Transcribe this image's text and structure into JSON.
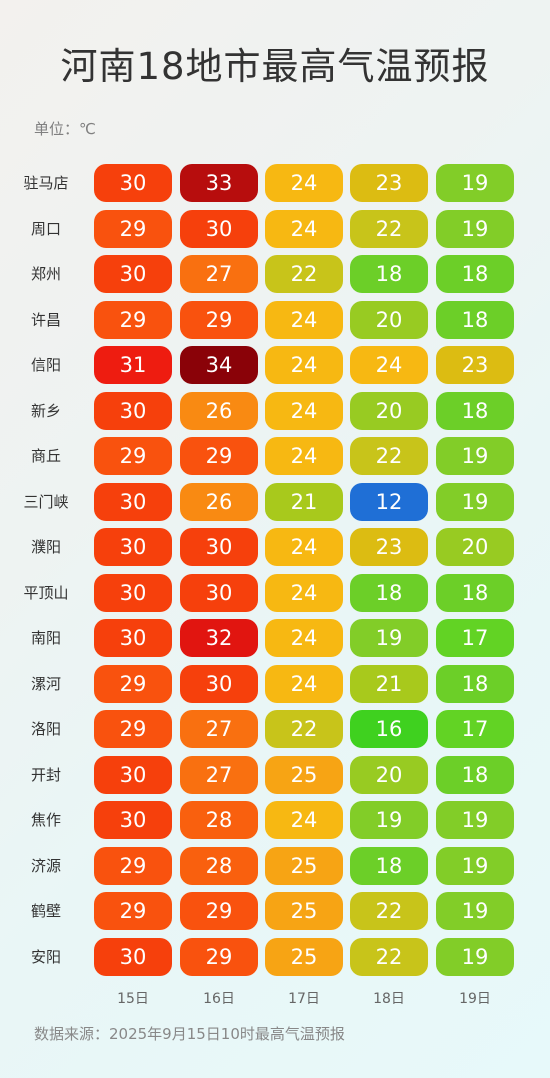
{
  "title": "河南18地市最高气温预报",
  "unit_label": "单位：℃",
  "source": "数据来源：2025年9月15日10时最高气温预报",
  "chart_data": {
    "type": "table",
    "title": "河南18地市最高气温预报",
    "unit": "℃",
    "columns": [
      "15日",
      "16日",
      "17日",
      "18日",
      "19日"
    ],
    "rows": [
      {
        "city": "驻马店",
        "values": [
          30,
          33,
          24,
          23,
          19
        ]
      },
      {
        "city": "周口",
        "values": [
          29,
          30,
          24,
          22,
          19
        ]
      },
      {
        "city": "郑州",
        "values": [
          30,
          27,
          22,
          18,
          18
        ]
      },
      {
        "city": "许昌",
        "values": [
          29,
          29,
          24,
          20,
          18
        ]
      },
      {
        "city": "信阳",
        "values": [
          31,
          34,
          24,
          24,
          23
        ]
      },
      {
        "city": "新乡",
        "values": [
          30,
          26,
          24,
          20,
          18
        ]
      },
      {
        "city": "商丘",
        "values": [
          29,
          29,
          24,
          22,
          19
        ]
      },
      {
        "city": "三门峡",
        "values": [
          30,
          26,
          21,
          12,
          19
        ]
      },
      {
        "city": "濮阳",
        "values": [
          30,
          30,
          24,
          23,
          20
        ]
      },
      {
        "city": "平顶山",
        "values": [
          30,
          30,
          24,
          18,
          18
        ]
      },
      {
        "city": "南阳",
        "values": [
          30,
          32,
          24,
          19,
          17
        ]
      },
      {
        "city": "漯河",
        "values": [
          29,
          30,
          24,
          21,
          18
        ]
      },
      {
        "city": "洛阳",
        "values": [
          29,
          27,
          22,
          16,
          17
        ]
      },
      {
        "city": "开封",
        "values": [
          30,
          27,
          25,
          20,
          18
        ]
      },
      {
        "city": "焦作",
        "values": [
          30,
          28,
          24,
          19,
          19
        ]
      },
      {
        "city": "济源",
        "values": [
          29,
          28,
          25,
          18,
          19
        ]
      },
      {
        "city": "鹤壁",
        "values": [
          29,
          29,
          25,
          22,
          19
        ]
      },
      {
        "city": "安阳",
        "values": [
          30,
          29,
          25,
          22,
          19
        ]
      }
    ],
    "color_scale": [
      {
        "value": 12,
        "color": "#1f6fd6"
      },
      {
        "value": 16,
        "color": "#3fd11f"
      },
      {
        "value": 17,
        "color": "#62d324"
      },
      {
        "value": 18,
        "color": "#6ccf28"
      },
      {
        "value": 19,
        "color": "#82cd28"
      },
      {
        "value": 20,
        "color": "#98cb22"
      },
      {
        "value": 21,
        "color": "#a8c91c"
      },
      {
        "value": 22,
        "color": "#c8c41a"
      },
      {
        "value": 23,
        "color": "#dcbc12"
      },
      {
        "value": 24,
        "color": "#f7b812"
      },
      {
        "value": 25,
        "color": "#f7a414"
      },
      {
        "value": 26,
        "color": "#f98a12"
      },
      {
        "value": 27,
        "color": "#f97010"
      },
      {
        "value": 28,
        "color": "#f9600e"
      },
      {
        "value": 29,
        "color": "#f9520e"
      },
      {
        "value": 30,
        "color": "#f6400c"
      },
      {
        "value": 31,
        "color": "#ee1c10"
      },
      {
        "value": 32,
        "color": "#e11510"
      },
      {
        "value": 33,
        "color": "#b70d0d"
      },
      {
        "value": 34,
        "color": "#8a0208"
      }
    ]
  }
}
